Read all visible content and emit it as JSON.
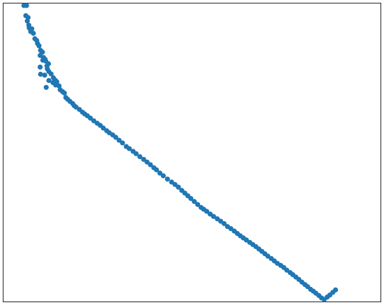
{
  "chart_data": {
    "type": "scatter",
    "title": "",
    "xlabel": "",
    "ylabel": "",
    "xlim": [
      0,
      100
    ],
    "ylim": [
      0,
      100
    ],
    "grid": false,
    "axes_ticks_visible": false,
    "marker_color": "#1f77b4",
    "series": [
      {
        "points": [
          [
            5.5,
            99.2
          ],
          [
            6.2,
            99.2
          ],
          [
            6.0,
            95.8
          ],
          [
            6.6,
            95.2
          ],
          [
            6.4,
            94.0
          ],
          [
            6.8,
            92.6
          ],
          [
            6.9,
            91.7
          ],
          [
            7.6,
            91.4
          ],
          [
            7.3,
            90.5
          ],
          [
            8.0,
            89.9
          ],
          [
            8.4,
            88.1
          ],
          [
            8.9,
            87.5
          ],
          [
            9.1,
            86.5
          ],
          [
            9.5,
            85.7
          ],
          [
            9.9,
            84.2
          ],
          [
            10.4,
            83.6
          ],
          [
            9.8,
            82.5
          ],
          [
            10.7,
            81.8
          ],
          [
            11.1,
            81.2
          ],
          [
            10.5,
            80.9
          ],
          [
            11.3,
            80.6
          ],
          [
            9.8,
            78.6
          ],
          [
            11.6,
            79.0
          ],
          [
            12.0,
            79.7
          ],
          [
            11.7,
            78.0
          ],
          [
            12.1,
            77.1
          ],
          [
            12.7,
            76.3
          ],
          [
            9.9,
            76.2
          ],
          [
            11.0,
            75.9
          ],
          [
            13.3,
            75.0
          ],
          [
            13.8,
            74.2
          ],
          [
            14.2,
            73.7
          ],
          [
            12.1,
            74.1
          ],
          [
            13.2,
            73.4
          ],
          [
            11.4,
            71.8
          ],
          [
            13.9,
            72.6
          ],
          [
            14.8,
            72.3
          ],
          [
            15.1,
            71.0
          ],
          [
            15.7,
            70.4
          ],
          [
            16.2,
            69.9
          ],
          [
            16.6,
            68.4
          ],
          [
            17.1,
            67.8
          ],
          [
            17.7,
            67.1
          ],
          [
            18.4,
            66.4
          ],
          [
            18.8,
            65.7
          ],
          [
            19.3,
            65.2
          ],
          [
            20.2,
            64.4
          ],
          [
            21.0,
            63.5
          ],
          [
            21.6,
            62.9
          ],
          [
            22.3,
            62.3
          ],
          [
            23.1,
            61.5
          ],
          [
            24.0,
            60.6
          ],
          [
            24.9,
            59.8
          ],
          [
            25.7,
            59.1
          ],
          [
            26.5,
            58.2
          ],
          [
            27.4,
            57.3
          ],
          [
            28.1,
            56.6
          ],
          [
            29.0,
            55.9
          ],
          [
            29.8,
            55.1
          ],
          [
            30.7,
            54.1
          ],
          [
            31.6,
            53.2
          ],
          [
            32.6,
            52.0
          ],
          [
            33.4,
            51.3
          ],
          [
            34.4,
            50.4
          ],
          [
            35.2,
            49.6
          ],
          [
            36.2,
            48.6
          ],
          [
            37.2,
            47.7
          ],
          [
            38.1,
            46.8
          ],
          [
            39.0,
            45.9
          ],
          [
            39.9,
            44.9
          ],
          [
            40.6,
            44.2
          ],
          [
            41.5,
            43.1
          ],
          [
            42.4,
            42.2
          ],
          [
            43.5,
            41.1
          ],
          [
            44.6,
            40.1
          ],
          [
            45.5,
            39.3
          ],
          [
            46.4,
            38.4
          ],
          [
            47.3,
            37.3
          ],
          [
            48.1,
            36.4
          ],
          [
            48.9,
            35.5
          ],
          [
            49.7,
            34.6
          ],
          [
            50.6,
            33.6
          ],
          [
            51.5,
            32.6
          ],
          [
            52.4,
            31.6
          ],
          [
            53.1,
            31.0
          ],
          [
            53.9,
            30.3
          ],
          [
            54.8,
            29.4
          ],
          [
            55.7,
            28.6
          ],
          [
            56.7,
            27.8
          ],
          [
            57.6,
            27.0
          ],
          [
            58.5,
            26.2
          ],
          [
            59.4,
            25.2
          ],
          [
            60.3,
            24.5
          ],
          [
            61.2,
            23.7
          ],
          [
            62.0,
            22.9
          ],
          [
            62.8,
            22.1
          ],
          [
            63.6,
            21.4
          ],
          [
            64.4,
            20.7
          ],
          [
            65.3,
            19.9
          ],
          [
            66.1,
            19.2
          ],
          [
            66.9,
            18.5
          ],
          [
            67.7,
            17.7
          ],
          [
            68.5,
            16.9
          ],
          [
            69.3,
            16.1
          ],
          [
            70.1,
            15.3
          ],
          [
            71.0,
            14.5
          ],
          [
            71.8,
            13.7
          ],
          [
            72.6,
            12.9
          ],
          [
            73.5,
            12.2
          ],
          [
            74.3,
            11.5
          ],
          [
            75.1,
            10.6
          ],
          [
            76.0,
            9.8
          ],
          [
            76.7,
            9.1
          ],
          [
            77.5,
            8.3
          ],
          [
            78.3,
            7.5
          ],
          [
            79.1,
            6.6
          ],
          [
            79.9,
            5.8
          ],
          [
            80.6,
            5.1
          ],
          [
            81.4,
            4.2
          ],
          [
            82.1,
            3.6
          ],
          [
            82.8,
            2.9
          ],
          [
            83.6,
            2.1
          ],
          [
            84.3,
            1.3
          ],
          [
            85.0,
            0.8
          ],
          [
            85.8,
            1.6
          ],
          [
            86.5,
            2.3
          ],
          [
            87.3,
            3.2
          ],
          [
            88.0,
            4.0
          ]
        ]
      }
    ]
  }
}
